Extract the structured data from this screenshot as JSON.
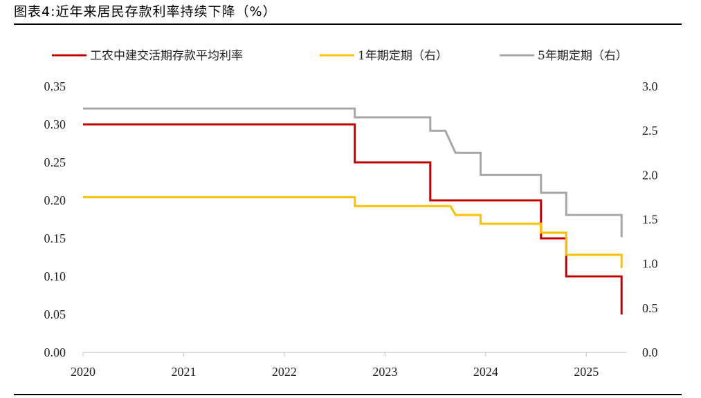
{
  "page": {
    "title": "图表4:近年来居民存款利率持续下降（%）"
  },
  "chart_data": {
    "type": "line",
    "step": true,
    "xlim": [
      2020,
      2025.5
    ],
    "x_ticks": [
      "2020",
      "2021",
      "2022",
      "2023",
      "2024",
      "2025"
    ],
    "y_left": {
      "ylim": [
        0,
        0.35
      ],
      "ticks": [
        "0.00",
        "0.05",
        "0.10",
        "0.15",
        "0.20",
        "0.25",
        "0.30",
        "0.35"
      ]
    },
    "y_right": {
      "ylim": [
        0,
        3.0
      ],
      "ticks": [
        "0.0",
        "0.5",
        "1.0",
        "1.5",
        "2.0",
        "2.5",
        "3.0"
      ]
    },
    "legend_position": "top",
    "series": [
      {
        "name": "工农中建交活期存款平均利率",
        "axis": "left",
        "color": "#C00000",
        "points": [
          [
            2020,
            0.3
          ],
          [
            2022.7,
            0.3
          ],
          [
            2022.7,
            0.25
          ],
          [
            2023.45,
            0.25
          ],
          [
            2023.45,
            0.2
          ],
          [
            2024.55,
            0.2
          ],
          [
            2024.55,
            0.15
          ],
          [
            2024.8,
            0.15
          ],
          [
            2024.8,
            0.1
          ],
          [
            2025.35,
            0.1
          ],
          [
            2025.35,
            0.05
          ]
        ]
      },
      {
        "name": "1年期定期（右）",
        "axis": "right",
        "color": "#FFC000",
        "points": [
          [
            2020,
            1.75
          ],
          [
            2022.7,
            1.75
          ],
          [
            2022.7,
            1.65
          ],
          [
            2023.65,
            1.65
          ],
          [
            2023.7,
            1.55
          ],
          [
            2023.95,
            1.55
          ],
          [
            2023.95,
            1.45
          ],
          [
            2024.55,
            1.45
          ],
          [
            2024.55,
            1.35
          ],
          [
            2024.8,
            1.35
          ],
          [
            2024.8,
            1.1
          ],
          [
            2025.35,
            1.1
          ],
          [
            2025.35,
            0.95
          ]
        ]
      },
      {
        "name": "5年期定期（右）",
        "axis": "right",
        "color": "#A6A6A6",
        "points": [
          [
            2020,
            2.75
          ],
          [
            2022.7,
            2.75
          ],
          [
            2022.7,
            2.65
          ],
          [
            2023.45,
            2.65
          ],
          [
            2023.45,
            2.5
          ],
          [
            2023.6,
            2.5
          ],
          [
            2023.7,
            2.25
          ],
          [
            2023.95,
            2.25
          ],
          [
            2023.95,
            2.0
          ],
          [
            2024.55,
            2.0
          ],
          [
            2024.55,
            1.8
          ],
          [
            2024.8,
            1.8
          ],
          [
            2024.8,
            1.55
          ],
          [
            2025.35,
            1.55
          ],
          [
            2025.35,
            1.3
          ]
        ]
      }
    ]
  }
}
